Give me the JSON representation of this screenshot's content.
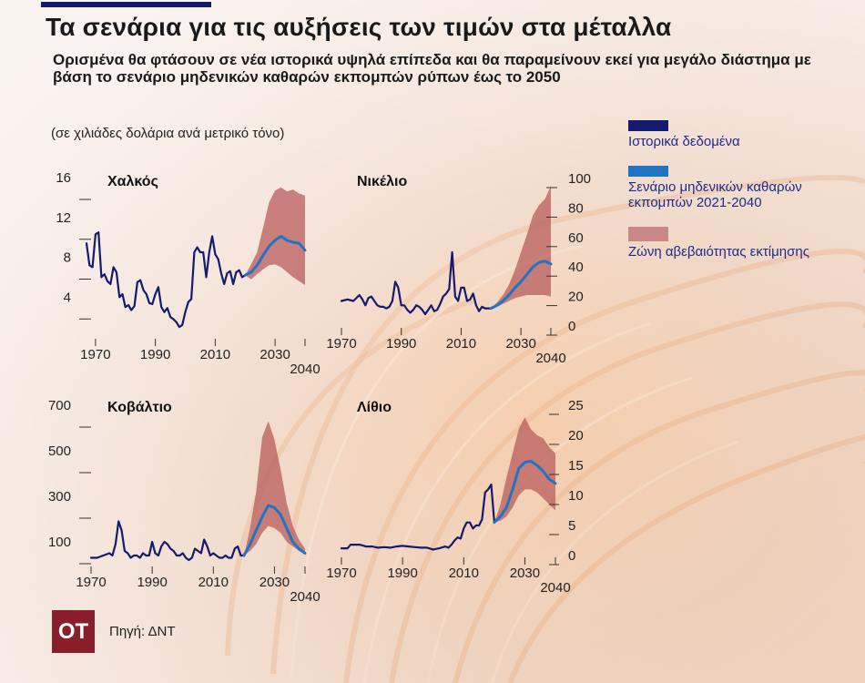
{
  "header": {
    "title": "Τα σενάρια για τις αυξήσεις των τιμών στα μέταλλα",
    "subtitle": "Ορισμένα θα φτάσουν σε νέα ιστορικά υψηλά επίπεδα και θα παραμείνουν εκεί για μεγάλο διάστημα με βάση το σενάριο μηδενικών καθαρών εκπομπών ρύπων έως το 2050",
    "unit_note": "(σε χιλιάδες δολάρια ανά μετρικό τόνο)"
  },
  "legend": {
    "historical": "Ιστορικά δεδομένα",
    "net_zero": "Σενάριο μηδενικών καθαρών εκπομπών 2021-2040",
    "band": "Ζώνη αβεβαιότητας εκτίμησης"
  },
  "colors": {
    "historical": "#141a6e",
    "net_zero": "#1f74c4",
    "band": "#b85c5c"
  },
  "footer": {
    "logo": "OT",
    "source": "Πηγή: ΔΝΤ"
  },
  "chart_data": [
    {
      "type": "line",
      "title": "Χαλκός",
      "axis_side": "left",
      "ylim": [
        0,
        16
      ],
      "yticks": [
        4,
        8,
        12,
        16
      ],
      "yticklabels": [
        "4",
        "8",
        "12",
        "16"
      ],
      "xlim": [
        1967,
        2040
      ],
      "xticks": [
        1970,
        1990,
        2010,
        2030,
        2040
      ],
      "series": [
        {
          "name": "Ιστορικά δεδομένα",
          "x": [
            1967,
            1968,
            1969,
            1970,
            1971,
            1972,
            1973,
            1974,
            1975,
            1976,
            1977,
            1978,
            1979,
            1980,
            1981,
            1982,
            1983,
            1984,
            1985,
            1986,
            1987,
            1988,
            1989,
            1990,
            1991,
            1992,
            1993,
            1994,
            1995,
            1996,
            1997,
            1998,
            1999,
            2000,
            2001,
            2002,
            2003,
            2004,
            2005,
            2006,
            2007,
            2008,
            2009,
            2010,
            2011,
            2012,
            2013,
            2014,
            2015,
            2016,
            2017,
            2018,
            2019,
            2020
          ],
          "y": [
            9.4,
            7.2,
            7,
            10.3,
            10.5,
            6,
            6.3,
            5.6,
            5.3,
            7,
            6.5,
            4,
            4.3,
            3,
            3.2,
            2.7,
            3.1,
            5.5,
            5.7,
            4.7,
            4.3,
            3.4,
            3.3,
            4.3,
            5,
            3,
            2.5,
            2.9,
            2,
            1.8,
            1.5,
            1,
            1.2,
            2.5,
            3.5,
            3.8,
            8.5,
            9,
            8.5,
            8.5,
            6,
            8.5,
            10.1,
            8.3,
            7.8,
            6.4,
            5.3,
            6.4,
            6.6,
            5.3,
            6.5,
            6.7,
            6,
            6.2
          ]
        },
        {
          "name": "Σενάριο μηδενικών καθαρών εκπομπών 2021-2040",
          "x": [
            2020,
            2022,
            2024,
            2026,
            2028,
            2030,
            2032,
            2034,
            2036,
            2038,
            2040
          ],
          "y": [
            6.2,
            6.5,
            7.2,
            8.2,
            9.1,
            9.7,
            10.1,
            9.7,
            9.5,
            9.4,
            8.7
          ]
        }
      ],
      "band": {
        "x": [
          2020,
          2022,
          2024,
          2026,
          2028,
          2030,
          2032,
          2034,
          2036,
          2038,
          2040
        ],
        "lower": [
          6.2,
          5.8,
          6.3,
          6.8,
          7.2,
          7.3,
          7,
          6.5,
          6,
          5.6,
          5.2
        ],
        "upper": [
          6.2,
          7.3,
          8.5,
          11,
          13.5,
          14.7,
          15,
          14.6,
          14.8,
          14.4,
          14.2
        ]
      }
    },
    {
      "type": "line",
      "title": "Νικέλιο",
      "axis_side": "right",
      "ylim": [
        0,
        100
      ],
      "yticks": [
        0,
        20,
        40,
        60,
        80,
        100
      ],
      "yticklabels": [
        "0",
        "20",
        "40",
        "60",
        "80",
        "100"
      ],
      "xlim": [
        1970,
        2040
      ],
      "xticks": [
        1970,
        1990,
        2010,
        2030,
        2040
      ],
      "series": [
        {
          "name": "Ιστορικά δεδομένα",
          "x": [
            1970,
            1972,
            1974,
            1976,
            1977,
            1978,
            1979,
            1980,
            1981,
            1982,
            1983,
            1984,
            1985,
            1986,
            1987,
            1988,
            1989,
            1990,
            1991,
            1992,
            1993,
            1994,
            1995,
            1996,
            1997,
            1998,
            1999,
            2000,
            2001,
            2002,
            2003,
            2004,
            2005,
            2006,
            2007,
            2008,
            2009,
            2010,
            2011,
            2012,
            2013,
            2014,
            2015,
            2016,
            2017,
            2018,
            2019,
            2020
          ],
          "y": [
            17,
            18,
            17,
            21,
            18,
            14,
            19,
            20,
            17,
            14,
            13,
            13,
            12,
            13,
            17,
            30,
            26,
            14,
            14,
            11,
            9,
            11,
            14,
            13,
            11,
            8,
            11,
            14,
            10,
            11,
            15,
            20,
            22,
            25,
            50,
            20,
            17,
            26,
            26,
            17,
            18,
            22,
            14,
            10,
            13,
            12,
            12,
            12
          ]
        },
        {
          "name": "Σενάριο μηδενικών καθαρών εκπομπών 2021-2040",
          "x": [
            2020,
            2022,
            2024,
            2026,
            2028,
            2030,
            2032,
            2034,
            2036,
            2038,
            2040
          ],
          "y": [
            12,
            14,
            17,
            21,
            26,
            30,
            35,
            40,
            43,
            44,
            42
          ]
        }
      ],
      "band": {
        "x": [
          2020,
          2022,
          2024,
          2026,
          2028,
          2030,
          2032,
          2034,
          2036,
          2038,
          2040
        ],
        "lower": [
          12,
          13,
          15,
          17,
          19,
          20,
          21,
          21,
          21,
          21,
          20
        ],
        "upper": [
          12,
          16,
          21,
          28,
          38,
          50,
          62,
          75,
          82,
          86,
          95
        ]
      }
    },
    {
      "type": "line",
      "title": "Κοβάλτιο",
      "axis_side": "left",
      "ylim": [
        0,
        720
      ],
      "yticks": [
        100,
        300,
        500,
        700
      ],
      "yticklabels": [
        "100",
        "300",
        "500",
        "700"
      ],
      "xlim": [
        1970,
        2040
      ],
      "xticks": [
        1970,
        1990,
        2010,
        2030,
        2040
      ],
      "series": [
        {
          "name": "Ιστορικά δεδομένα",
          "x": [
            1970,
            1972,
            1974,
            1976,
            1977,
            1978,
            1979,
            1980,
            1981,
            1982,
            1983,
            1984,
            1985,
            1986,
            1987,
            1988,
            1989,
            1990,
            1991,
            1992,
            1993,
            1994,
            1995,
            1996,
            1997,
            1998,
            1999,
            2000,
            2001,
            2002,
            2003,
            2004,
            2005,
            2006,
            2007,
            2008,
            2009,
            2010,
            2011,
            2012,
            2013,
            2014,
            2015,
            2016,
            2017,
            2018,
            2019,
            2020
          ],
          "y": [
            30,
            30,
            40,
            50,
            40,
            90,
            190,
            150,
            60,
            50,
            30,
            40,
            40,
            30,
            50,
            40,
            40,
            100,
            50,
            40,
            80,
            100,
            90,
            70,
            60,
            40,
            40,
            50,
            30,
            20,
            30,
            70,
            60,
            50,
            110,
            80,
            40,
            50,
            40,
            30,
            30,
            40,
            30,
            30,
            70,
            80,
            40,
            40
          ]
        },
        {
          "name": "Σενάριο μηδενικών καθαρών εκπομπών 2021-2040",
          "x": [
            2020,
            2022,
            2024,
            2026,
            2028,
            2030,
            2032,
            2034,
            2036,
            2038,
            2040
          ],
          "y": [
            40,
            90,
            150,
            210,
            260,
            250,
            220,
            160,
            100,
            70,
            50
          ]
        }
      ],
      "band": {
        "x": [
          2020,
          2022,
          2024,
          2026,
          2028,
          2030,
          2032,
          2034,
          2036,
          2038,
          2040
        ],
        "lower": [
          40,
          60,
          90,
          140,
          170,
          160,
          140,
          100,
          80,
          60,
          45
        ],
        "upper": [
          40,
          160,
          320,
          560,
          630,
          550,
          420,
          270,
          170,
          110,
          70
        ]
      }
    },
    {
      "type": "line",
      "title": "Λίθιο",
      "axis_side": "right",
      "ylim": [
        0,
        25
      ],
      "yticks": [
        0,
        5,
        10,
        15,
        20,
        25
      ],
      "yticklabels": [
        "0",
        "5",
        "10",
        "15",
        "20",
        "25"
      ],
      "xlim": [
        1970,
        2040
      ],
      "xticks": [
        1970,
        1990,
        2010,
        2030,
        2040
      ],
      "series": [
        {
          "name": "Ιστορικά δεδομένα",
          "x": [
            1970,
            1972,
            1973,
            1974,
            1976,
            1978,
            1980,
            1982,
            1984,
            1986,
            1988,
            1990,
            1992,
            1994,
            1996,
            1998,
            2000,
            2002,
            2004,
            2005,
            2006,
            2007,
            2008,
            2009,
            2010,
            2011,
            2012,
            2013,
            2014,
            2015,
            2016,
            2017,
            2018,
            2019,
            2020
          ],
          "y": [
            1.2,
            1.2,
            1.8,
            1.8,
            1.8,
            1.5,
            1.5,
            1.3,
            1.4,
            1.3,
            1.5,
            1.6,
            1.5,
            1.4,
            1.3,
            1.3,
            1,
            1.2,
            1.5,
            1.3,
            1.8,
            2.5,
            3,
            2.8,
            4.5,
            5.5,
            5.5,
            4.5,
            5,
            5,
            6,
            10.5,
            11,
            11.8,
            5.5
          ]
        },
        {
          "name": "Σενάριο μηδενικών καθαρών εκπομπών 2021-2040",
          "x": [
            2020,
            2022,
            2024,
            2026,
            2028,
            2030,
            2032,
            2034,
            2036,
            2038,
            2040
          ],
          "y": [
            5.5,
            6.5,
            8,
            11,
            14.5,
            15.5,
            15.7,
            15,
            14,
            12.7,
            12
          ]
        }
      ],
      "band": {
        "x": [
          2020,
          2022,
          2024,
          2026,
          2028,
          2030,
          2032,
          2034,
          2036,
          2038,
          2040
        ],
        "lower": [
          5.5,
          5.8,
          6.5,
          8,
          10,
          11,
          11,
          10.5,
          9.5,
          8.5,
          7.5
        ],
        "upper": [
          5.5,
          8.5,
          13,
          17,
          21,
          23,
          21,
          20,
          19.5,
          18,
          17
        ]
      }
    }
  ]
}
